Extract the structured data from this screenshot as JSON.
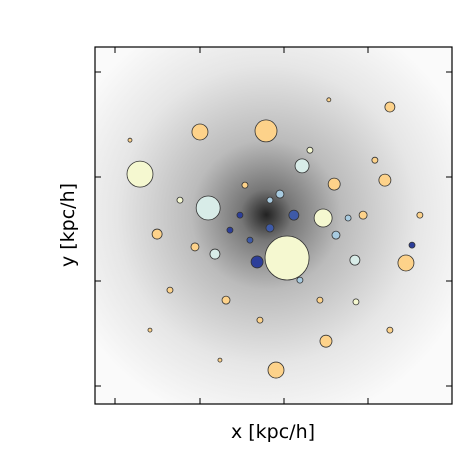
{
  "chart_data": {
    "type": "scatter",
    "x_label": "x [kpc/h]",
    "y_label": "y [kpc/h]",
    "xlim": [
      0,
      100
    ],
    "ylim": [
      0,
      100
    ],
    "x": [
      53.8,
      12.6,
      31.7,
      47.9,
      29.4,
      58,
      63.9,
      67,
      81.2,
      87.1,
      82.6,
      50.7,
      64.7,
      55.7,
      45.4,
      49,
      33.6,
      72.8,
      17.4,
      51.8,
      67.5,
      75.1,
      70.9,
      40.6,
      88.8,
      36.7,
      28,
      21,
      63,
      73.1,
      42,
      60.2,
      78.4,
      9.8,
      23.8,
      46.2,
      57.4,
      82.6,
      91,
      15.4,
      35,
      65.5,
      43.4,
      37.8,
      49
    ],
    "y": [
      40.9,
      64.4,
      54.9,
      76.5,
      76.2,
      66.7,
      52.1,
      61.6,
      62.7,
      39.5,
      83.2,
      9.5,
      17.6,
      52.9,
      39.8,
      49.3,
      42,
      40.3,
      47.6,
      58.8,
      47.3,
      52.9,
      52.1,
      52.9,
      44.5,
      29.1,
      44,
      31.9,
      29.1,
      28.6,
      61.3,
      71.1,
      68.3,
      73.9,
      57.1,
      23.5,
      34.7,
      20.7,
      52.9,
      20.7,
      12.3,
      85.2,
      45.9,
      48.7,
      57.1
    ],
    "sizes": [
      22,
      13,
      12,
      11,
      8,
      7,
      9,
      6,
      6,
      8,
      5,
      8,
      6,
      5,
      6,
      4,
      5,
      5,
      5,
      4,
      4,
      4,
      3,
      3,
      3,
      4,
      4,
      3,
      3,
      3,
      3,
      3,
      3,
      2,
      3,
      3,
      3,
      3,
      3,
      2,
      2,
      2,
      3,
      3,
      3
    ],
    "colors": [
      "#f5f8d0",
      "#f5f8d0",
      "#d8ece8",
      "#fdd28a",
      "#fdd28a",
      "#d8ece8",
      "#f5f8d0",
      "#fdd28a",
      "#fdd28a",
      "#fdd28a",
      "#fdd28a",
      "#fdd28a",
      "#fdd28a",
      "#3e5aa8",
      "#2c3e9a",
      "#3e5aa8",
      "#d8ece8",
      "#d8ece8",
      "#fdd28a",
      "#a8cbe0",
      "#a8cbe0",
      "#fdd28a",
      "#a8cbe0",
      "#2c3e9a",
      "#2c3e9a",
      "#fdd28a",
      "#fdd28a",
      "#fdd28a",
      "#fdd28a",
      "#f5f8d0",
      "#fdd28a",
      "#f5f8d0",
      "#fdd28a",
      "#fdd28a",
      "#f5f8d0",
      "#fdd28a",
      "#a8cbe0",
      "#fdd28a",
      "#fdd28a",
      "#fdd28a",
      "#fdd28a",
      "#fdd28a",
      "#3e5aa8",
      "#2c3e9a",
      "#a8cbe0"
    ]
  }
}
